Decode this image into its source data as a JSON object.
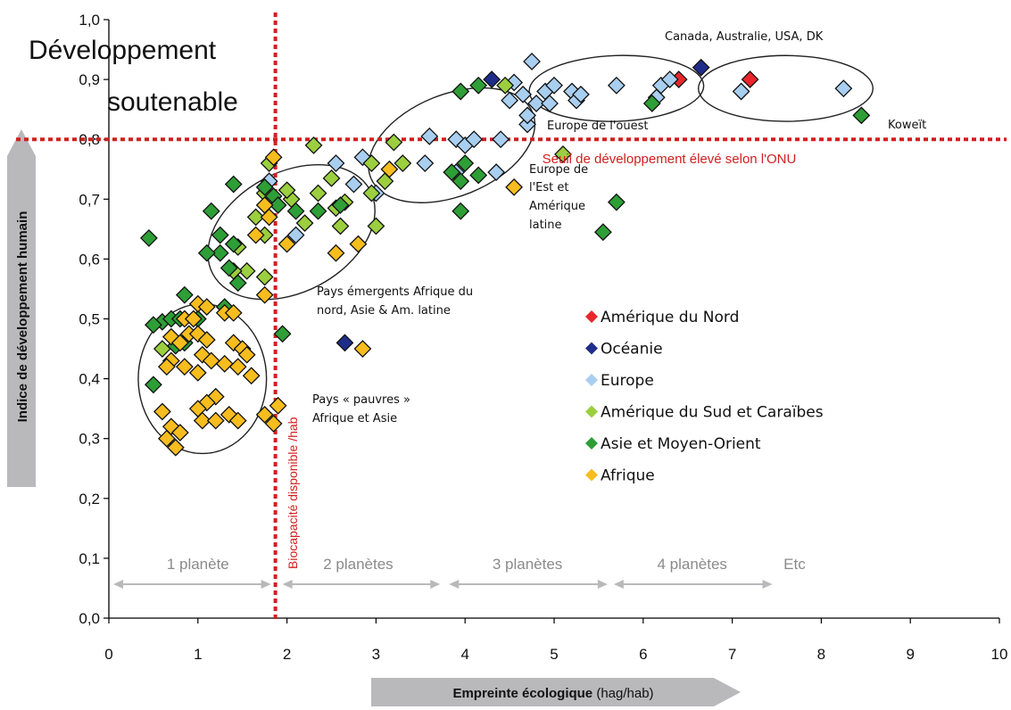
{
  "chart_data": {
    "type": "scatter",
    "title": "",
    "xlabel_bold": "Empreinte écologique",
    "xlabel_rest": " (hag/hab)",
    "ylabel": "Indice de développement humain",
    "xlim": [
      0,
      10
    ],
    "ylim": [
      0,
      1
    ],
    "x_ticks": [
      "0",
      "1",
      "2",
      "3",
      "4",
      "5",
      "6",
      "7",
      "8",
      "9",
      "10"
    ],
    "y_ticks": [
      "0,0",
      "0,1",
      "0,2",
      "0,3",
      "0,4",
      "0,5",
      "0,6",
      "0,7",
      "0,8",
      "0,9",
      "1,0"
    ],
    "corner_label_1": "Développement",
    "corner_label_2": "soutenable",
    "threshold_hdi": 0.8,
    "threshold_hdi_label": "Seuil de développement élevé selon l'ONU",
    "biocapacity_x": 1.87,
    "biocapacity_label": "Biocapacité disponible /hab",
    "planets": [
      "1 planète",
      "2 planètes",
      "3 planètes",
      "4 planètes",
      "Etc"
    ],
    "annotations": {
      "nord": "Canada, Australie, USA, DK",
      "koweit": "Koweït",
      "europe_ouest": "Europe de l'ouest",
      "europe_est": [
        "Europe de",
        "l'Est et",
        "Amérique",
        "latine"
      ],
      "emergents": [
        "Pays émergents Afrique du",
        "nord, Asie & Am. latine"
      ],
      "pauvres": [
        "Pays « pauvres »",
        "Afrique et Asie"
      ]
    },
    "series": [
      {
        "name": "Amérique du Nord",
        "color": "#e8262b",
        "points": [
          [
            6.4,
            0.9
          ],
          [
            7.2,
            0.9
          ]
        ]
      },
      {
        "name": "Océanie",
        "color": "#1f2d8a",
        "points": [
          [
            4.3,
            0.9
          ],
          [
            6.65,
            0.92
          ],
          [
            2.65,
            0.46
          ]
        ]
      },
      {
        "name": "Europe",
        "color": "#a9cff0",
        "points": [
          [
            4.55,
            0.895
          ],
          [
            4.75,
            0.93
          ],
          [
            4.5,
            0.865
          ],
          [
            4.65,
            0.875
          ],
          [
            4.8,
            0.86
          ],
          [
            4.9,
            0.88
          ],
          [
            5.0,
            0.89
          ],
          [
            4.95,
            0.86
          ],
          [
            5.2,
            0.88
          ],
          [
            5.25,
            0.865
          ],
          [
            5.3,
            0.875
          ],
          [
            5.7,
            0.89
          ],
          [
            6.2,
            0.89
          ],
          [
            6.3,
            0.9
          ],
          [
            6.15,
            0.87
          ],
          [
            7.1,
            0.88
          ],
          [
            8.25,
            0.885
          ],
          [
            4.7,
            0.825
          ],
          [
            4.7,
            0.84
          ],
          [
            3.6,
            0.805
          ],
          [
            3.9,
            0.8
          ],
          [
            4.0,
            0.79
          ],
          [
            4.1,
            0.8
          ],
          [
            4.4,
            0.8
          ],
          [
            3.55,
            0.76
          ],
          [
            3.9,
            0.745
          ],
          [
            4.35,
            0.745
          ],
          [
            2.85,
            0.77
          ],
          [
            2.75,
            0.725
          ],
          [
            3.0,
            0.71
          ],
          [
            2.55,
            0.76
          ],
          [
            2.1,
            0.64
          ],
          [
            1.8,
            0.73
          ]
        ]
      },
      {
        "name": "Amérique du Sud et Caraïbes",
        "color": "#9ccf3f",
        "points": [
          [
            4.45,
            0.89
          ],
          [
            5.1,
            0.775
          ],
          [
            3.2,
            0.795
          ],
          [
            3.3,
            0.76
          ],
          [
            3.1,
            0.73
          ],
          [
            2.95,
            0.76
          ],
          [
            2.95,
            0.71
          ],
          [
            2.3,
            0.79
          ],
          [
            2.5,
            0.735
          ],
          [
            2.35,
            0.71
          ],
          [
            2.2,
            0.66
          ],
          [
            2.05,
            0.7
          ],
          [
            2.0,
            0.715
          ],
          [
            2.55,
            0.685
          ],
          [
            2.65,
            0.695
          ],
          [
            2.6,
            0.655
          ],
          [
            3.0,
            0.655
          ],
          [
            1.75,
            0.71
          ],
          [
            1.8,
            0.76
          ],
          [
            1.65,
            0.67
          ],
          [
            1.75,
            0.64
          ],
          [
            1.55,
            0.58
          ],
          [
            1.75,
            0.57
          ],
          [
            1.45,
            0.62
          ],
          [
            1.4,
            0.58
          ],
          [
            0.6,
            0.45
          ]
        ]
      },
      {
        "name": "Asie et Moyen-Orient",
        "color": "#2e9e36",
        "points": [
          [
            3.95,
            0.88
          ],
          [
            4.15,
            0.89
          ],
          [
            6.1,
            0.86
          ],
          [
            8.45,
            0.84
          ],
          [
            5.55,
            0.645
          ],
          [
            5.7,
            0.695
          ],
          [
            4.0,
            0.76
          ],
          [
            3.95,
            0.73
          ],
          [
            4.15,
            0.74
          ],
          [
            3.85,
            0.745
          ],
          [
            3.95,
            0.68
          ],
          [
            1.4,
            0.725
          ],
          [
            1.85,
            0.705
          ],
          [
            1.9,
            0.69
          ],
          [
            2.1,
            0.68
          ],
          [
            2.35,
            0.68
          ],
          [
            2.6,
            0.69
          ],
          [
            1.75,
            0.72
          ],
          [
            1.15,
            0.68
          ],
          [
            1.25,
            0.64
          ],
          [
            1.4,
            0.625
          ],
          [
            1.25,
            0.61
          ],
          [
            1.35,
            0.585
          ],
          [
            1.45,
            0.56
          ],
          [
            1.1,
            0.61
          ],
          [
            1.3,
            0.52
          ],
          [
            1.0,
            0.5
          ],
          [
            0.85,
            0.54
          ],
          [
            0.45,
            0.635
          ],
          [
            0.6,
            0.495
          ],
          [
            0.7,
            0.5
          ],
          [
            0.8,
            0.5
          ],
          [
            0.5,
            0.49
          ],
          [
            0.5,
            0.39
          ],
          [
            0.85,
            0.46
          ],
          [
            0.75,
            0.455
          ],
          [
            1.95,
            0.475
          ]
        ]
      },
      {
        "name": "Afrique",
        "color": "#f7bd1e",
        "points": [
          [
            4.55,
            0.72
          ],
          [
            3.15,
            0.75
          ],
          [
            2.8,
            0.625
          ],
          [
            2.55,
            0.61
          ],
          [
            2.0,
            0.625
          ],
          [
            1.65,
            0.64
          ],
          [
            1.75,
            0.69
          ],
          [
            1.8,
            0.67
          ],
          [
            1.85,
            0.77
          ],
          [
            1.0,
            0.525
          ],
          [
            1.1,
            0.52
          ],
          [
            1.3,
            0.51
          ],
          [
            1.4,
            0.51
          ],
          [
            1.75,
            0.54
          ],
          [
            0.85,
            0.5
          ],
          [
            0.95,
            0.5
          ],
          [
            0.9,
            0.475
          ],
          [
            1.0,
            0.475
          ],
          [
            1.1,
            0.465
          ],
          [
            1.05,
            0.44
          ],
          [
            0.7,
            0.47
          ],
          [
            0.8,
            0.46
          ],
          [
            0.7,
            0.43
          ],
          [
            0.65,
            0.42
          ],
          [
            0.85,
            0.42
          ],
          [
            1.0,
            0.41
          ],
          [
            1.15,
            0.43
          ],
          [
            1.3,
            0.425
          ],
          [
            1.4,
            0.46
          ],
          [
            1.5,
            0.45
          ],
          [
            1.45,
            0.42
          ],
          [
            1.55,
            0.44
          ],
          [
            1.6,
            0.405
          ],
          [
            1.35,
            0.34
          ],
          [
            1.2,
            0.37
          ],
          [
            1.1,
            0.36
          ],
          [
            1.0,
            0.35
          ],
          [
            1.05,
            0.33
          ],
          [
            1.2,
            0.33
          ],
          [
            1.45,
            0.33
          ],
          [
            1.75,
            0.34
          ],
          [
            1.9,
            0.355
          ],
          [
            0.6,
            0.345
          ],
          [
            0.7,
            0.32
          ],
          [
            0.8,
            0.31
          ],
          [
            0.65,
            0.3
          ],
          [
            0.75,
            0.285
          ],
          [
            1.85,
            0.325
          ],
          [
            2.85,
            0.45
          ]
        ]
      }
    ],
    "ellipses_desc": [
      {
        "cx": 1.05,
        "cy": 0.4,
        "rx": 0.72,
        "ry": 0.125
      },
      {
        "cx": 2.05,
        "cy": 0.645,
        "rx": 1.0,
        "ry": 0.1,
        "rot": -28
      },
      {
        "cx": 3.85,
        "cy": 0.79,
        "rx": 0.98,
        "ry": 0.085,
        "rot": -22
      },
      {
        "cx": 5.7,
        "cy": 0.885,
        "rx": 0.98,
        "ry": 0.055,
        "rot": -2
      },
      {
        "cx": 7.6,
        "cy": 0.885,
        "rx": 0.98,
        "ry": 0.055
      }
    ]
  },
  "legend": {
    "items": [
      {
        "label": "Amérique du Nord",
        "color": "#e8262b"
      },
      {
        "label": "Océanie",
        "color": "#1f2d8a"
      },
      {
        "label": "Europe",
        "color": "#a9cff0"
      },
      {
        "label": "Amérique du Sud et Caraïbes",
        "color": "#9ccf3f"
      },
      {
        "label": "Asie et Moyen-Orient",
        "color": "#2e9e36"
      },
      {
        "label": "Afrique",
        "color": "#f7bd1e"
      }
    ]
  },
  "colors": {
    "threshold": "#d21f1f",
    "arrow_gray": "#b9b9bc",
    "planet_gray": "#8a8a8a"
  }
}
